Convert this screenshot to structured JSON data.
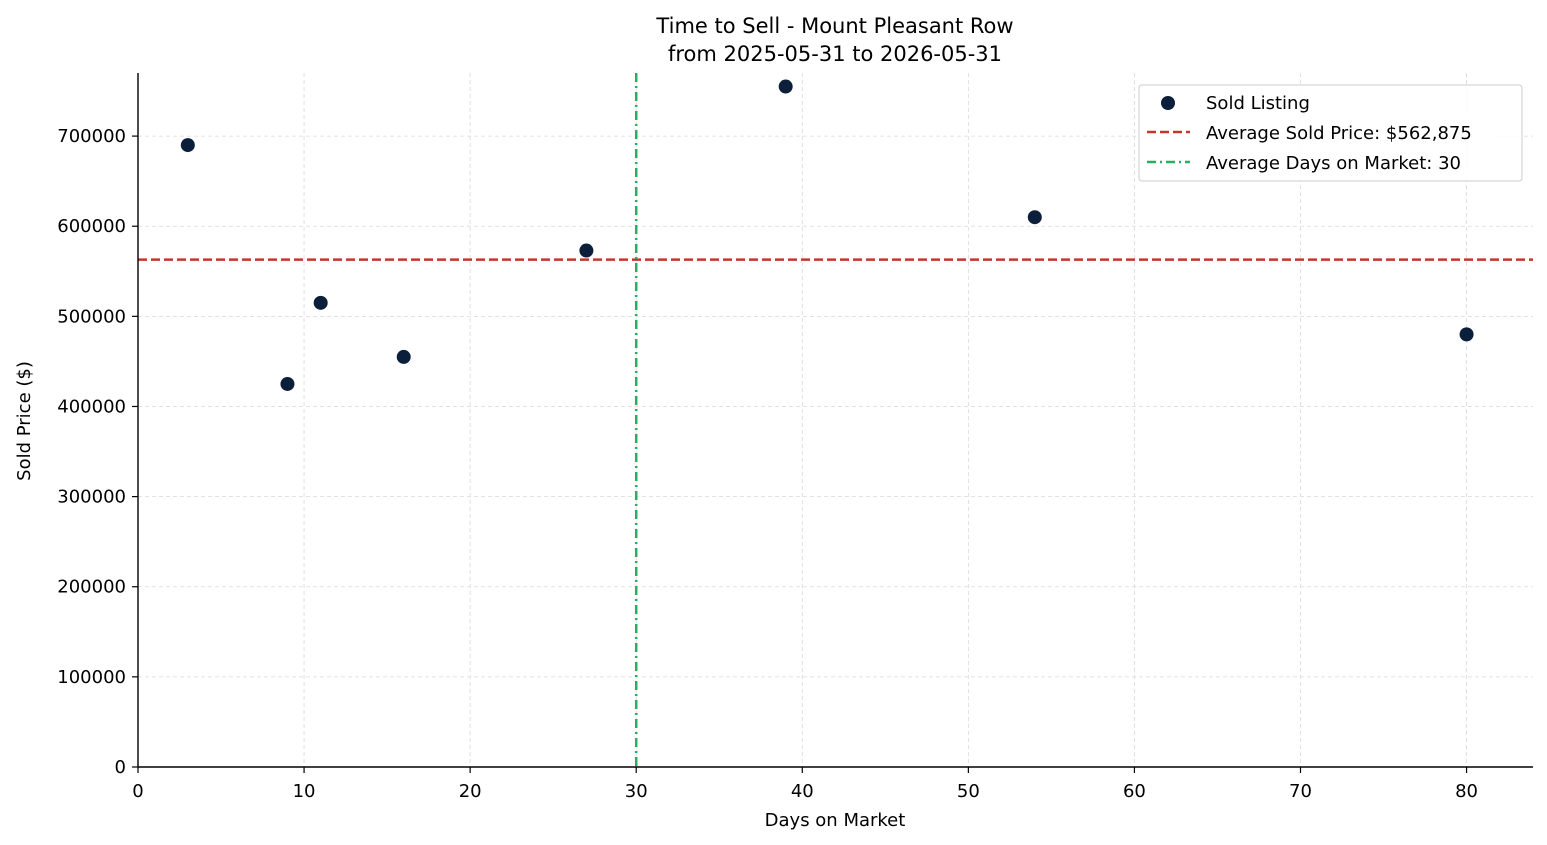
{
  "chart_data": {
    "type": "scatter",
    "title": "Time to Sell - Mount Pleasant Row",
    "subtitle": "from 2025-05-31 to 2026-05-31",
    "xlabel": "Days on Market",
    "ylabel": "Sold Price ($)",
    "xlim": [
      0,
      84
    ],
    "ylim": [
      0,
      770000
    ],
    "xticks": [
      0,
      10,
      20,
      30,
      40,
      50,
      60,
      70,
      80
    ],
    "yticks": [
      0,
      100000,
      200000,
      300000,
      400000,
      500000,
      600000,
      700000
    ],
    "grid": true,
    "legend_position": "top-right",
    "series": [
      {
        "name": "Sold Listing",
        "color": "#0b1f3a",
        "x": [
          3,
          9,
          11,
          16,
          27,
          39,
          54,
          80
        ],
        "y": [
          690000,
          425000,
          515000,
          455000,
          573000,
          755000,
          610000,
          480000
        ]
      }
    ],
    "reference_lines": [
      {
        "name": "Average Sold Price: $562,875",
        "orientation": "horizontal",
        "value": 562875,
        "color": "#c0392b",
        "style": "dashed"
      },
      {
        "name": "Average Days on Market: 30",
        "orientation": "vertical",
        "value": 30,
        "color": "#27ae60",
        "style": "dashdot"
      }
    ]
  }
}
